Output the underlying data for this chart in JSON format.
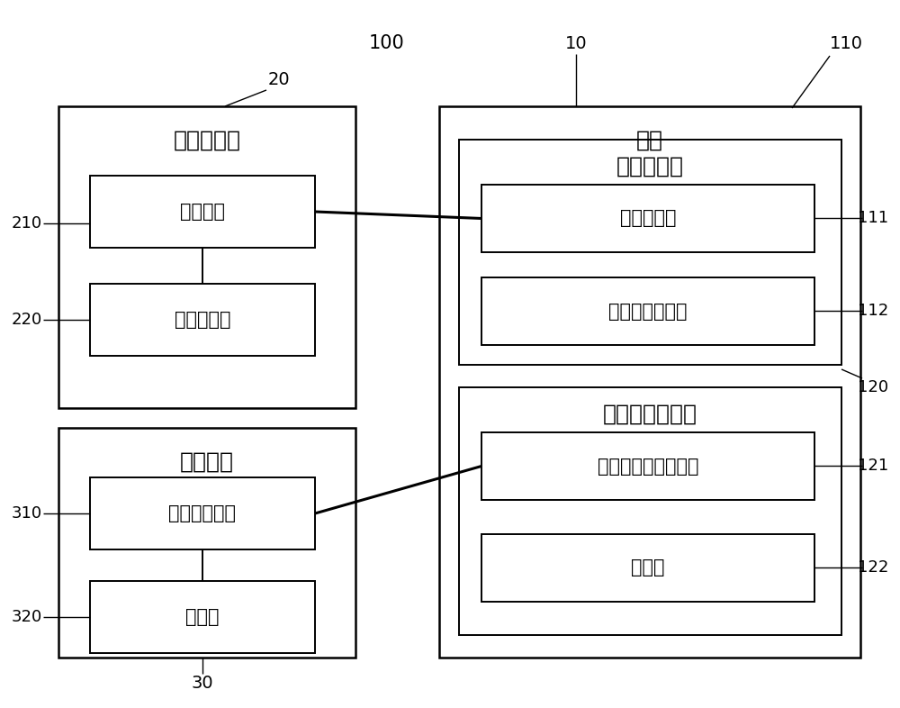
{
  "bg_color": "#ffffff",
  "line_color": "#000000",
  "labels": {
    "100": "100",
    "10": "10",
    "20": "20",
    "30": "30",
    "110": "110",
    "111": "111",
    "112": "112",
    "120": "120",
    "121": "121",
    "122": "122",
    "210": "210",
    "220": "220",
    "310": "310",
    "320": "320"
  },
  "chinese": {
    "eeg_controller": "脑电控制器",
    "comm_unit": "通讯单元",
    "eeg_collector": "脑电采集器",
    "stim_unit": "刺激单元",
    "elec_stim_output": "电刺激输出线",
    "electrode": "电极片",
    "host": "主机",
    "computer_integrator": "电脑集成器",
    "computer_sub": "电脑子系统",
    "vr_sub": "虚拟现实子系统",
    "bio_feedback": "生物反馈康复仪",
    "bio_feedback_host": "生物反馈康复仪主机",
    "signal_line": "信号线"
  },
  "fs_title": 18,
  "fs_inner": 15,
  "fs_ref": 13
}
